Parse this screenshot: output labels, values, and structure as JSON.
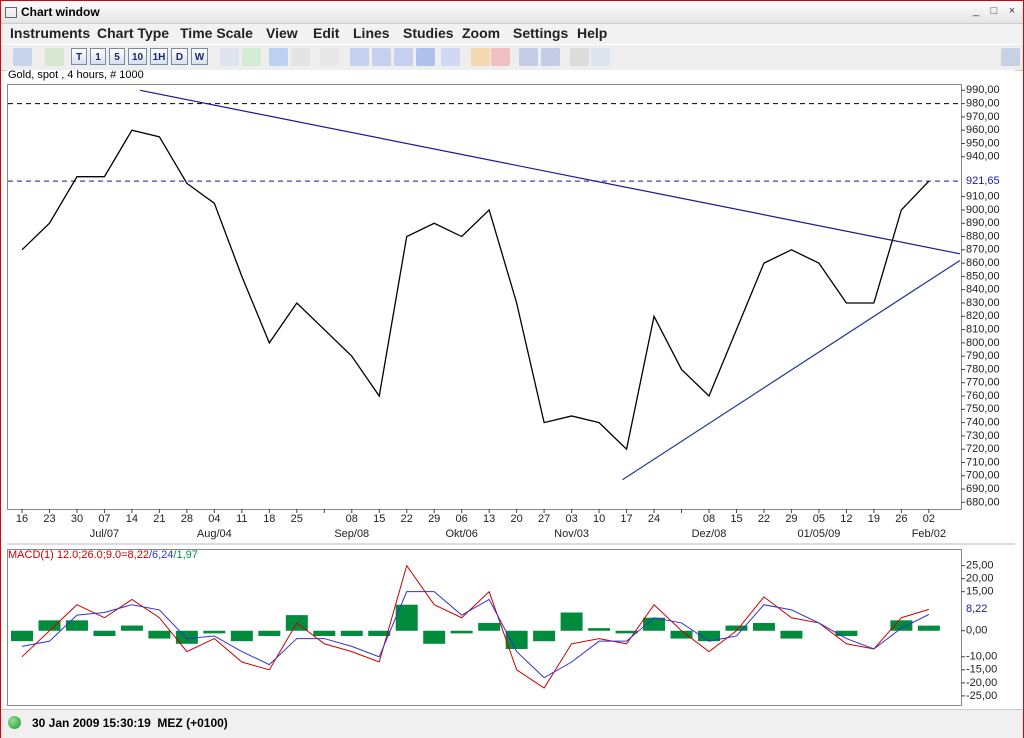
{
  "window_title": "Chart window",
  "menu": [
    "Instruments",
    "Chart Type",
    "Time Scale",
    "View",
    "Edit",
    "Lines",
    "Studies",
    "Zoom",
    "Settings",
    "Help"
  ],
  "toolbar_buttons": [
    "T",
    "1",
    "5",
    "10",
    "1H",
    "D",
    "W"
  ],
  "status": "30 Jan 2009 15:30:19  MEZ (+0100)",
  "chart_data": [
    {
      "type": "line",
      "title": "Gold, spot , 4 hours, # 1000",
      "categories": [
        "16",
        "23",
        "30",
        "07",
        "14",
        "21",
        "28",
        "04",
        "11",
        "18",
        "25",
        null,
        "08",
        "15",
        "22",
        "29",
        "06",
        "13",
        "20",
        "27",
        "03",
        "10",
        "17",
        "24",
        null,
        "08",
        "15",
        "22",
        "29",
        "05",
        "12",
        "19",
        "26",
        "02"
      ],
      "period_labels": [
        null,
        null,
        null,
        "Jul/07",
        null,
        null,
        null,
        "Aug/04",
        null,
        null,
        null,
        null,
        "Sep/08",
        null,
        null,
        null,
        "Okt/06",
        null,
        null,
        null,
        "Nov/03",
        null,
        null,
        null,
        null,
        "Dez/08",
        null,
        null,
        null,
        "01/05/09",
        null,
        null,
        null,
        "Feb/02"
      ],
      "series": [
        {
          "color": "#000000",
          "values": [
            870,
            890,
            925,
            925,
            960,
            955,
            920,
            905,
            850,
            800,
            830,
            810,
            790,
            760,
            880,
            890,
            880,
            900,
            830,
            740,
            745,
            740,
            720,
            820,
            780,
            760,
            810,
            860,
            870,
            860,
            830,
            830,
            900,
            921.65
          ]
        }
      ],
      "ylim": [
        675,
        994
      ],
      "yticks": [
        {
          "value": 990,
          "label": "990,00"
        },
        {
          "value": 980,
          "label": "980,00"
        },
        {
          "value": 970,
          "label": "970,00"
        },
        {
          "value": 960,
          "label": "960,00"
        },
        {
          "value": 950,
          "label": "950,00"
        },
        {
          "value": 940,
          "label": "940,00"
        },
        {
          "value": 910,
          "label": "910,00"
        },
        {
          "value": 900,
          "label": "900,00"
        },
        {
          "value": 890,
          "label": "890,00"
        },
        {
          "value": 880,
          "label": "880,00"
        },
        {
          "value": 870,
          "label": "870,00"
        },
        {
          "value": 860,
          "label": "860,00"
        },
        {
          "value": 850,
          "label": "850,00"
        },
        {
          "value": 840,
          "label": "840,00"
        },
        {
          "value": 830,
          "label": "830,00"
        },
        {
          "value": 820,
          "label": "820,00"
        },
        {
          "value": 810,
          "label": "810,00"
        },
        {
          "value": 800,
          "label": "800,00"
        },
        {
          "value": 790,
          "label": "790,00"
        },
        {
          "value": 780,
          "label": "780,00"
        },
        {
          "value": 770,
          "label": "770,00"
        },
        {
          "value": 760,
          "label": "760,00"
        },
        {
          "value": 750,
          "label": "750,00"
        },
        {
          "value": 740,
          "label": "740,00"
        },
        {
          "value": 730,
          "label": "730,00"
        },
        {
          "value": 720,
          "label": "720,00"
        },
        {
          "value": 710,
          "label": "710,00"
        },
        {
          "value": 700,
          "label": "700,00"
        },
        {
          "value": 690,
          "label": "690,00"
        },
        {
          "value": 680,
          "label": "680,00"
        }
      ],
      "last_value": {
        "value": 921.65,
        "label": "921,65",
        "color": "#1a1aa0"
      },
      "hlines": [
        {
          "value": 980,
          "color": "#000000"
        },
        {
          "value": 921.65,
          "color": "#1a1aa0"
        }
      ],
      "trendlines": [
        {
          "from": [
            4.3,
            990
          ],
          "to": [
            34.13,
            867
          ],
          "color": "#1a1a8c"
        },
        {
          "from": [
            21.85,
            697
          ],
          "to": [
            34.13,
            862
          ],
          "color": "#1a3a8c"
        }
      ]
    },
    {
      "type": "macd",
      "title_parts": [
        {
          "text": "MACD(1) 12.0;26.0;9.0=8,22",
          "color": "#cc0000"
        },
        {
          "text": "/6,24",
          "color": "#3333cc"
        },
        {
          "text": "/1,97",
          "color": "#008c3c"
        }
      ],
      "series": [
        {
          "color": "#cc0000",
          "values": [
            -10,
            0,
            10,
            5,
            12,
            5,
            -8,
            -3,
            -12,
            -15,
            3,
            -5,
            -8,
            -12,
            25,
            10,
            5,
            15,
            -15,
            -22,
            -5,
            -3,
            -5,
            10,
            0,
            -8,
            0,
            13,
            5,
            3,
            -5,
            -7,
            5,
            8.22
          ]
        },
        {
          "color": "#3333cc",
          "values": [
            -6,
            -4,
            6,
            7,
            10,
            8,
            -3,
            -2,
            -8,
            -13,
            -3,
            -3,
            -6,
            -10,
            15,
            15,
            6,
            12,
            -8,
            -18,
            -12,
            -4,
            -4,
            5,
            3,
            -4,
            -2,
            10,
            8,
            3,
            -3,
            -7,
            1,
            6.24
          ]
        },
        {
          "color": "#008c3c",
          "values": [
            -4,
            4,
            4,
            -2,
            2,
            -3,
            -5,
            -1,
            -4,
            -2,
            6,
            -2,
            -2,
            -2,
            10,
            -5,
            -1,
            3,
            -7,
            -4,
            7,
            1,
            -1,
            5,
            -3,
            -4,
            2,
            3,
            -3,
            0,
            -2,
            0,
            4,
            1.97
          ]
        }
      ],
      "ylim": [
        -28.5,
        31
      ],
      "yticks": [
        {
          "value": 25,
          "label": "25,00"
        },
        {
          "value": 20,
          "label": "20,00"
        },
        {
          "value": 15,
          "label": "15,00"
        },
        {
          "value": 0,
          "label": "0,00"
        },
        {
          "value": -10,
          "label": "-10,00"
        },
        {
          "value": -15,
          "label": "-15,00"
        },
        {
          "value": -20,
          "label": "-20,00"
        },
        {
          "value": -25,
          "label": "-25,00"
        }
      ],
      "last_value": {
        "value": 8.22,
        "label": "8,22",
        "color": "#1a1aa0"
      }
    }
  ]
}
